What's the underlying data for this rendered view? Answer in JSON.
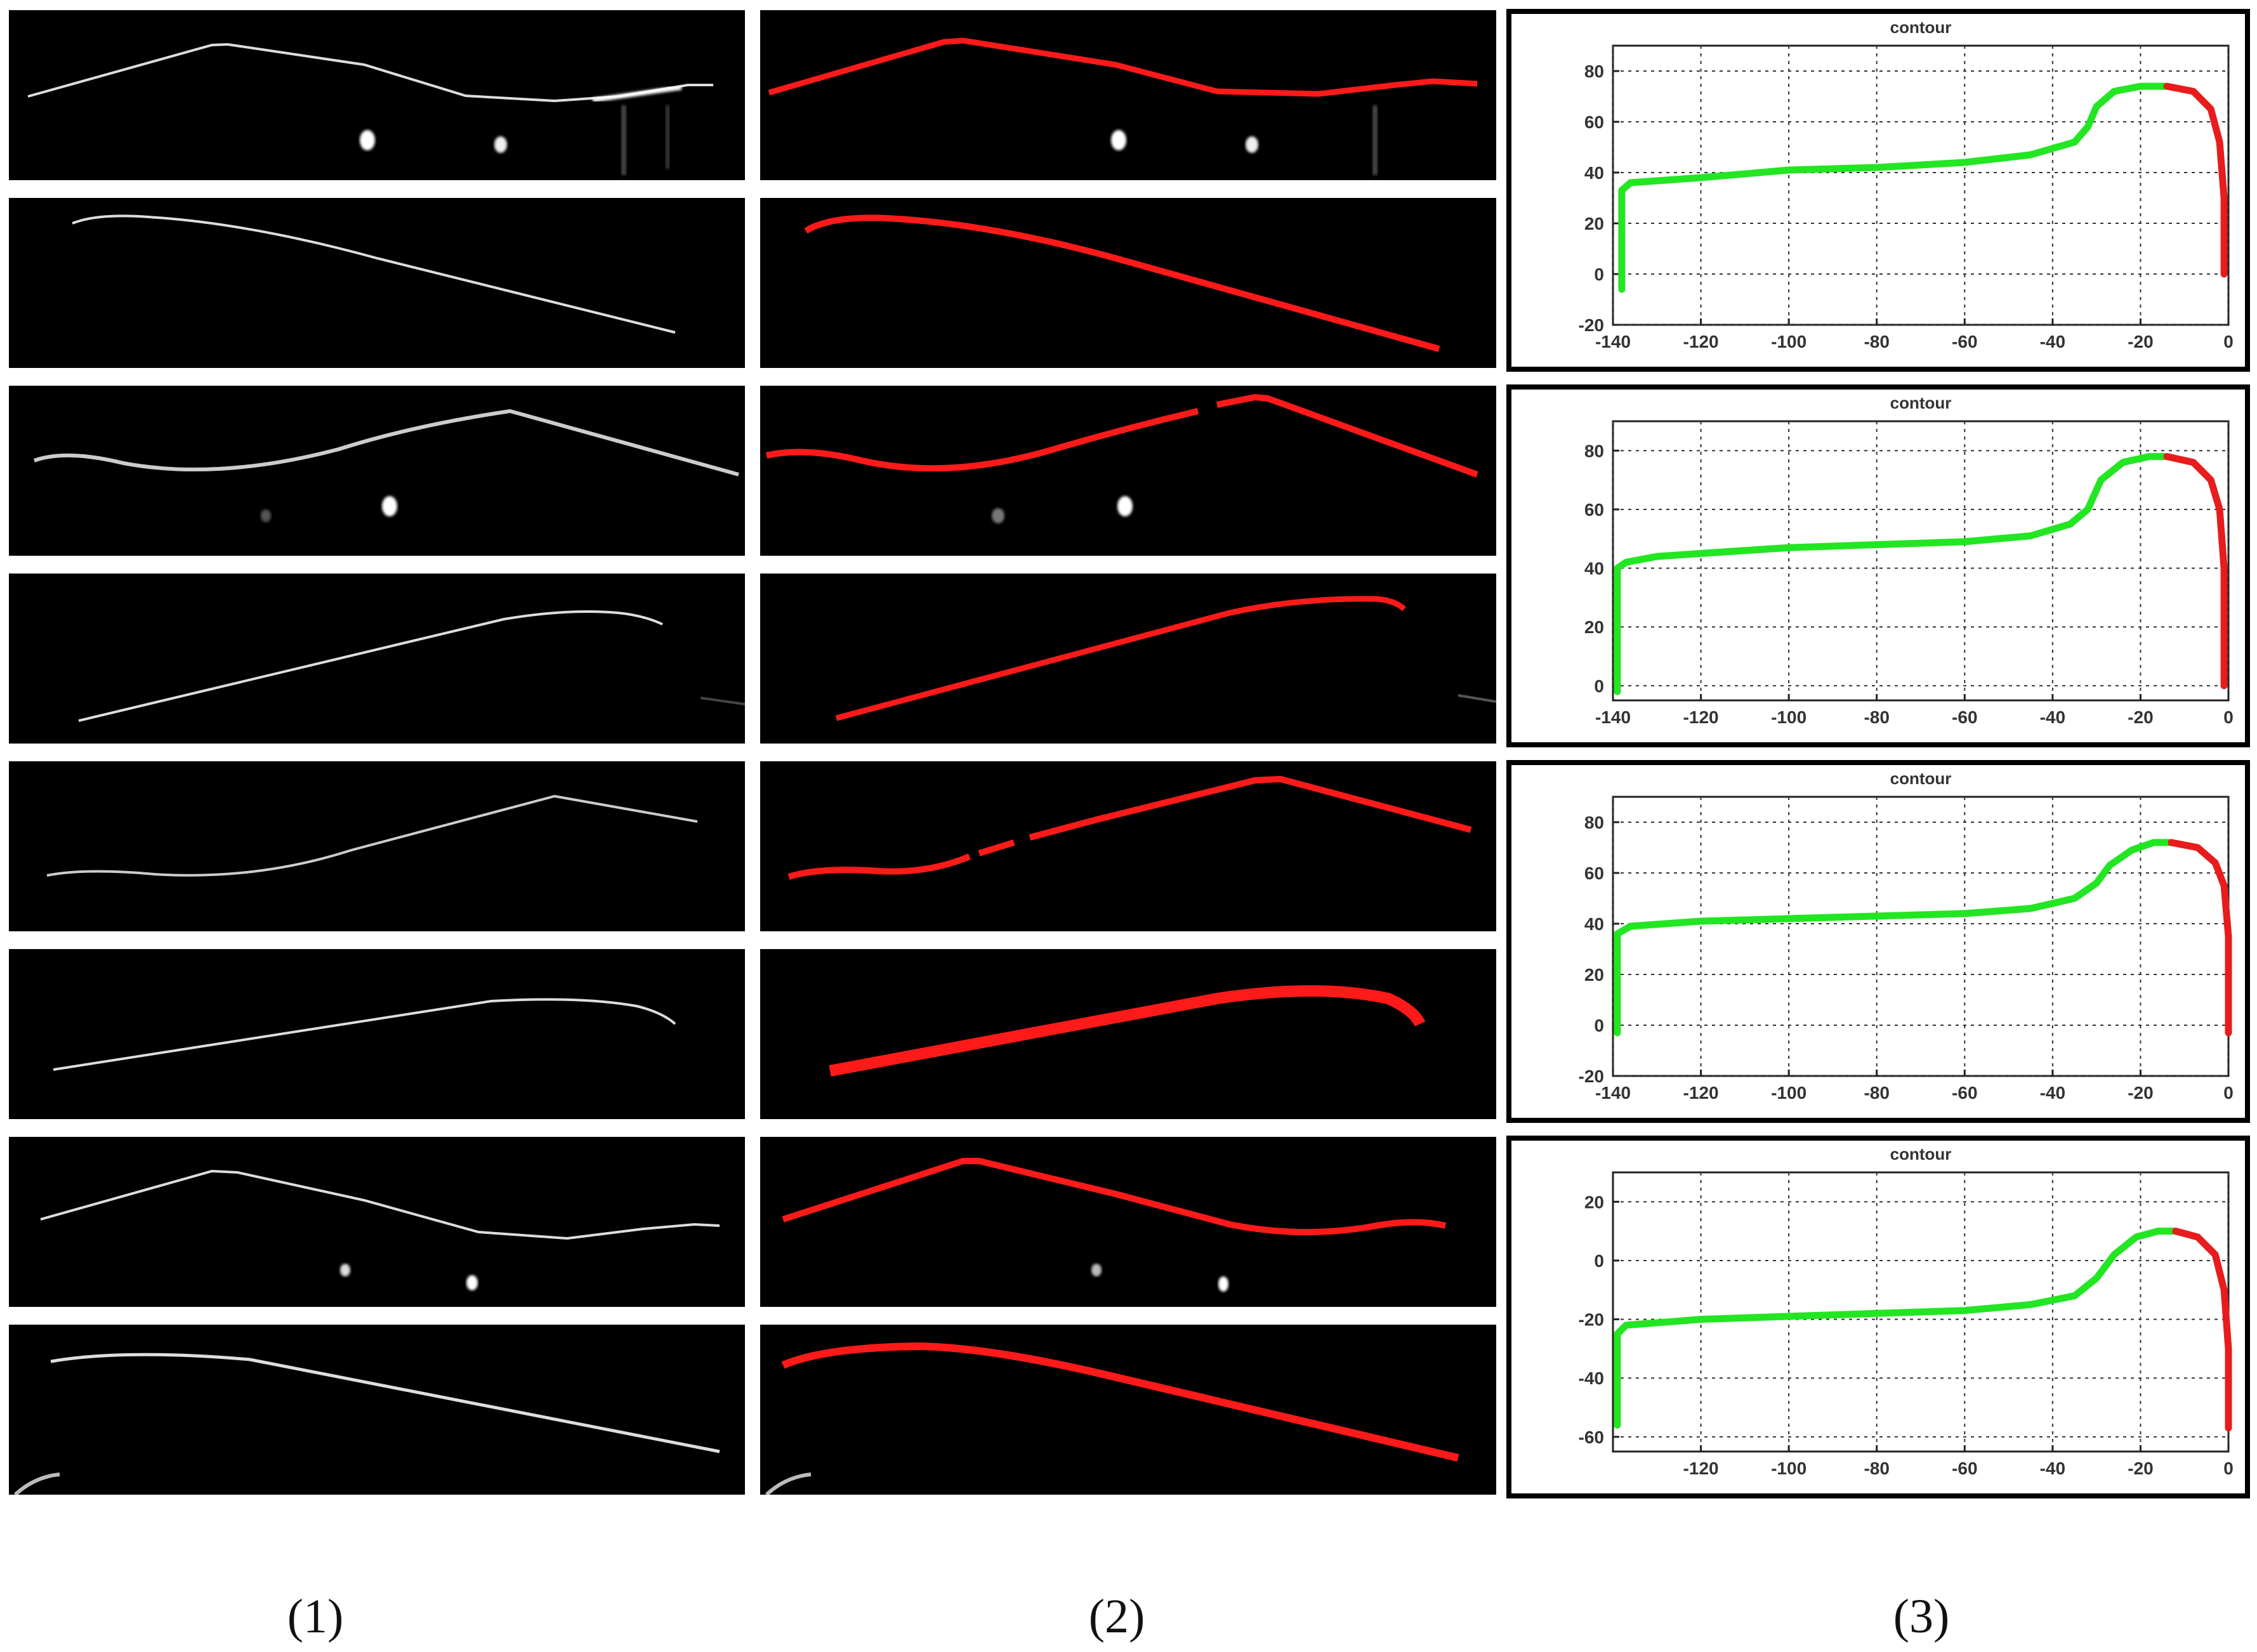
{
  "figure": {
    "captions": [
      "(1)",
      "(2)",
      "(3)"
    ],
    "colors": {
      "raw": "#e8e8e8",
      "extracted": "#ff1a1a",
      "green": "#22e622",
      "red": "#e81c1c",
      "background": "#000000"
    }
  },
  "chart_data": [
    {
      "type": "scatter",
      "title": "contour",
      "xlim": [
        -140,
        0
      ],
      "ylim": [
        -20,
        90
      ],
      "x_ticks": [
        -140,
        -120,
        -100,
        -80,
        -60,
        -40,
        -20,
        0
      ],
      "y_ticks": [
        -20,
        0,
        20,
        40,
        60,
        80
      ],
      "grid": true,
      "series": [
        {
          "color": "#22e622",
          "points": [
            [
              -138,
              -6
            ],
            [
              -138,
              10
            ],
            [
              -138,
              25
            ],
            [
              -138,
              33
            ],
            [
              -136,
              36
            ],
            [
              -120,
              38
            ],
            [
              -100,
              41
            ],
            [
              -80,
              42
            ],
            [
              -60,
              44
            ],
            [
              -45,
              47
            ],
            [
              -35,
              52
            ],
            [
              -32,
              58
            ],
            [
              -30,
              66
            ],
            [
              -26,
              72
            ],
            [
              -20,
              74
            ],
            [
              -14,
              74
            ]
          ]
        },
        {
          "color": "#e81c1c",
          "points": [
            [
              -14,
              74
            ],
            [
              -8,
              72
            ],
            [
              -4,
              65
            ],
            [
              -2,
              52
            ],
            [
              -1,
              30
            ],
            [
              -1,
              10
            ],
            [
              -1,
              0
            ]
          ]
        }
      ]
    },
    {
      "type": "scatter",
      "title": "contour",
      "xlim": [
        -140,
        0
      ],
      "ylim": [
        -5,
        90
      ],
      "x_ticks": [
        -140,
        -120,
        -100,
        -80,
        -60,
        -40,
        -20,
        0
      ],
      "y_ticks": [
        0,
        20,
        40,
        60,
        80
      ],
      "grid": true,
      "series": [
        {
          "color": "#22e622",
          "points": [
            [
              -139,
              -2
            ],
            [
              -139,
              10
            ],
            [
              -139,
              25
            ],
            [
              -139,
              40
            ],
            [
              -137,
              42
            ],
            [
              -130,
              44
            ],
            [
              -120,
              45
            ],
            [
              -100,
              47
            ],
            [
              -80,
              48
            ],
            [
              -60,
              49
            ],
            [
              -45,
              51
            ],
            [
              -36,
              55
            ],
            [
              -32,
              60
            ],
            [
              -29,
              70
            ],
            [
              -24,
              76
            ],
            [
              -18,
              78
            ],
            [
              -14,
              78
            ]
          ]
        },
        {
          "color": "#e81c1c",
          "points": [
            [
              -14,
              78
            ],
            [
              -8,
              76
            ],
            [
              -4,
              70
            ],
            [
              -2,
              60
            ],
            [
              -1,
              40
            ],
            [
              -1,
              20
            ],
            [
              -1,
              0
            ]
          ]
        }
      ]
    },
    {
      "type": "scatter",
      "title": "contour",
      "xlim": [
        -140,
        0
      ],
      "ylim": [
        -20,
        90
      ],
      "x_ticks": [
        -140,
        -120,
        -100,
        -80,
        -60,
        -40,
        -20,
        0
      ],
      "y_ticks": [
        -20,
        0,
        20,
        40,
        60,
        80
      ],
      "grid": true,
      "series": [
        {
          "color": "#22e622",
          "points": [
            [
              -139,
              -3
            ],
            [
              -139,
              10
            ],
            [
              -139,
              25
            ],
            [
              -139,
              36
            ],
            [
              -136,
              39
            ],
            [
              -120,
              41
            ],
            [
              -100,
              42
            ],
            [
              -80,
              43
            ],
            [
              -60,
              44
            ],
            [
              -45,
              46
            ],
            [
              -35,
              50
            ],
            [
              -30,
              56
            ],
            [
              -27,
              63
            ],
            [
              -22,
              69
            ],
            [
              -17,
              72
            ],
            [
              -13,
              72
            ]
          ]
        },
        {
          "color": "#e81c1c",
          "points": [
            [
              -13,
              72
            ],
            [
              -7,
              70
            ],
            [
              -3,
              64
            ],
            [
              -1,
              55
            ],
            [
              0,
              35
            ],
            [
              0,
              15
            ],
            [
              0,
              -3
            ]
          ]
        }
      ]
    },
    {
      "type": "scatter",
      "title": "contour",
      "xlim": [
        -140,
        0
      ],
      "ylim": [
        -65,
        30
      ],
      "x_ticks": [
        -120,
        -100,
        -80,
        -60,
        -40,
        -20,
        0
      ],
      "y_ticks": [
        -60,
        -40,
        -20,
        0,
        20
      ],
      "grid": true,
      "series": [
        {
          "color": "#22e622",
          "points": [
            [
              -139,
              -56
            ],
            [
              -139,
              -45
            ],
            [
              -139,
              -35
            ],
            [
              -139,
              -25
            ],
            [
              -137,
              -22
            ],
            [
              -120,
              -20
            ],
            [
              -100,
              -19
            ],
            [
              -80,
              -18
            ],
            [
              -60,
              -17
            ],
            [
              -45,
              -15
            ],
            [
              -35,
              -12
            ],
            [
              -30,
              -6
            ],
            [
              -26,
              2
            ],
            [
              -21,
              8
            ],
            [
              -16,
              10
            ],
            [
              -12,
              10
            ]
          ]
        },
        {
          "color": "#e81c1c",
          "points": [
            [
              -12,
              10
            ],
            [
              -7,
              8
            ],
            [
              -3,
              2
            ],
            [
              -1,
              -10
            ],
            [
              0,
              -30
            ],
            [
              0,
              -45
            ],
            [
              0,
              -57
            ]
          ]
        }
      ]
    }
  ]
}
